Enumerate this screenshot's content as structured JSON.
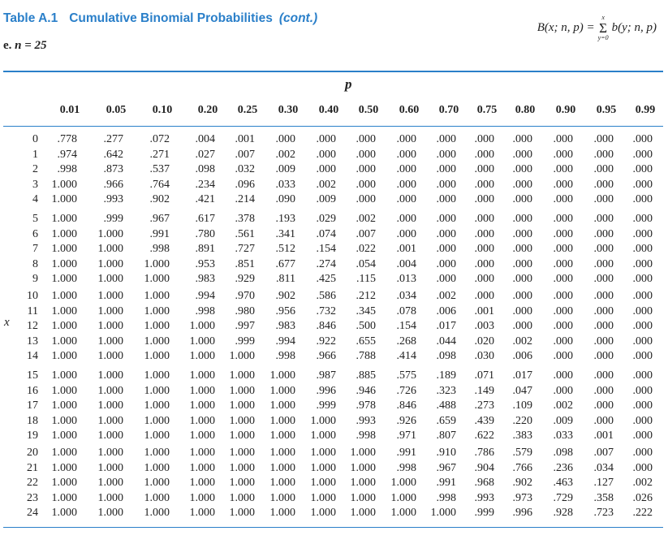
{
  "header": {
    "table_label": "Table A.1",
    "title": "Cumulative Binomial Probabilities",
    "cont": "(cont.)",
    "subtitle_prefix": "e.",
    "subtitle_n": "n = 25",
    "formula_lhs": "B(x; n, p) =",
    "formula_sum_upper": "x",
    "formula_sum_symbol": "Σ",
    "formula_sum_lower": "y=0",
    "formula_rhs": "b(y; n, p)"
  },
  "axis": {
    "p_label": "p",
    "x_label": "x"
  },
  "columns": [
    "0.01",
    "0.05",
    "0.10",
    "0.20",
    "0.25",
    "0.30",
    "0.40",
    "0.50",
    "0.60",
    "0.70",
    "0.75",
    "0.80",
    "0.90",
    "0.95",
    "0.99"
  ],
  "rows": [
    {
      "x": "0",
      "v": [
        ".778",
        ".277",
        ".072",
        ".004",
        ".001",
        ".000",
        ".000",
        ".000",
        ".000",
        ".000",
        ".000",
        ".000",
        ".000",
        ".000",
        ".000"
      ]
    },
    {
      "x": "1",
      "v": [
        ".974",
        ".642",
        ".271",
        ".027",
        ".007",
        ".002",
        ".000",
        ".000",
        ".000",
        ".000",
        ".000",
        ".000",
        ".000",
        ".000",
        ".000"
      ]
    },
    {
      "x": "2",
      "v": [
        ".998",
        ".873",
        ".537",
        ".098",
        ".032",
        ".009",
        ".000",
        ".000",
        ".000",
        ".000",
        ".000",
        ".000",
        ".000",
        ".000",
        ".000"
      ]
    },
    {
      "x": "3",
      "v": [
        "1.000",
        ".966",
        ".764",
        ".234",
        ".096",
        ".033",
        ".002",
        ".000",
        ".000",
        ".000",
        ".000",
        ".000",
        ".000",
        ".000",
        ".000"
      ]
    },
    {
      "x": "4",
      "v": [
        "1.000",
        ".993",
        ".902",
        ".421",
        ".214",
        ".090",
        ".009",
        ".000",
        ".000",
        ".000",
        ".000",
        ".000",
        ".000",
        ".000",
        ".000"
      ]
    },
    {
      "x": "5",
      "v": [
        "1.000",
        ".999",
        ".967",
        ".617",
        ".378",
        ".193",
        ".029",
        ".002",
        ".000",
        ".000",
        ".000",
        ".000",
        ".000",
        ".000",
        ".000"
      ]
    },
    {
      "x": "6",
      "v": [
        "1.000",
        "1.000",
        ".991",
        ".780",
        ".561",
        ".341",
        ".074",
        ".007",
        ".000",
        ".000",
        ".000",
        ".000",
        ".000",
        ".000",
        ".000"
      ]
    },
    {
      "x": "7",
      "v": [
        "1.000",
        "1.000",
        ".998",
        ".891",
        ".727",
        ".512",
        ".154",
        ".022",
        ".001",
        ".000",
        ".000",
        ".000",
        ".000",
        ".000",
        ".000"
      ]
    },
    {
      "x": "8",
      "v": [
        "1.000",
        "1.000",
        "1.000",
        ".953",
        ".851",
        ".677",
        ".274",
        ".054",
        ".004",
        ".000",
        ".000",
        ".000",
        ".000",
        ".000",
        ".000"
      ]
    },
    {
      "x": "9",
      "v": [
        "1.000",
        "1.000",
        "1.000",
        ".983",
        ".929",
        ".811",
        ".425",
        ".115",
        ".013",
        ".000",
        ".000",
        ".000",
        ".000",
        ".000",
        ".000"
      ]
    },
    {
      "x": "10",
      "v": [
        "1.000",
        "1.000",
        "1.000",
        ".994",
        ".970",
        ".902",
        ".586",
        ".212",
        ".034",
        ".002",
        ".000",
        ".000",
        ".000",
        ".000",
        ".000"
      ]
    },
    {
      "x": "11",
      "v": [
        "1.000",
        "1.000",
        "1.000",
        ".998",
        ".980",
        ".956",
        ".732",
        ".345",
        ".078",
        ".006",
        ".001",
        ".000",
        ".000",
        ".000",
        ".000"
      ]
    },
    {
      "x": "12",
      "v": [
        "1.000",
        "1.000",
        "1.000",
        "1.000",
        ".997",
        ".983",
        ".846",
        ".500",
        ".154",
        ".017",
        ".003",
        ".000",
        ".000",
        ".000",
        ".000"
      ]
    },
    {
      "x": "13",
      "v": [
        "1.000",
        "1.000",
        "1.000",
        "1.000",
        ".999",
        ".994",
        ".922",
        ".655",
        ".268",
        ".044",
        ".020",
        ".002",
        ".000",
        ".000",
        ".000"
      ]
    },
    {
      "x": "14",
      "v": [
        "1.000",
        "1.000",
        "1.000",
        "1.000",
        "1.000",
        ".998",
        ".966",
        ".788",
        ".414",
        ".098",
        ".030",
        ".006",
        ".000",
        ".000",
        ".000"
      ]
    },
    {
      "x": "15",
      "v": [
        "1.000",
        "1.000",
        "1.000",
        "1.000",
        "1.000",
        "1.000",
        ".987",
        ".885",
        ".575",
        ".189",
        ".071",
        ".017",
        ".000",
        ".000",
        ".000"
      ]
    },
    {
      "x": "16",
      "v": [
        "1.000",
        "1.000",
        "1.000",
        "1.000",
        "1.000",
        "1.000",
        ".996",
        ".946",
        ".726",
        ".323",
        ".149",
        ".047",
        ".000",
        ".000",
        ".000"
      ]
    },
    {
      "x": "17",
      "v": [
        "1.000",
        "1.000",
        "1.000",
        "1.000",
        "1.000",
        "1.000",
        ".999",
        ".978",
        ".846",
        ".488",
        ".273",
        ".109",
        ".002",
        ".000",
        ".000"
      ]
    },
    {
      "x": "18",
      "v": [
        "1.000",
        "1.000",
        "1.000",
        "1.000",
        "1.000",
        "1.000",
        "1.000",
        ".993",
        ".926",
        ".659",
        ".439",
        ".220",
        ".009",
        ".000",
        ".000"
      ]
    },
    {
      "x": "19",
      "v": [
        "1.000",
        "1.000",
        "1.000",
        "1.000",
        "1.000",
        "1.000",
        "1.000",
        ".998",
        ".971",
        ".807",
        ".622",
        ".383",
        ".033",
        ".001",
        ".000"
      ]
    },
    {
      "x": "20",
      "v": [
        "1.000",
        "1.000",
        "1.000",
        "1.000",
        "1.000",
        "1.000",
        "1.000",
        "1.000",
        ".991",
        ".910",
        ".786",
        ".579",
        ".098",
        ".007",
        ".000"
      ]
    },
    {
      "x": "21",
      "v": [
        "1.000",
        "1.000",
        "1.000",
        "1.000",
        "1.000",
        "1.000",
        "1.000",
        "1.000",
        ".998",
        ".967",
        ".904",
        ".766",
        ".236",
        ".034",
        ".000"
      ]
    },
    {
      "x": "22",
      "v": [
        "1.000",
        "1.000",
        "1.000",
        "1.000",
        "1.000",
        "1.000",
        "1.000",
        "1.000",
        "1.000",
        ".991",
        ".968",
        ".902",
        ".463",
        ".127",
        ".002"
      ]
    },
    {
      "x": "23",
      "v": [
        "1.000",
        "1.000",
        "1.000",
        "1.000",
        "1.000",
        "1.000",
        "1.000",
        "1.000",
        "1.000",
        ".998",
        ".993",
        ".973",
        ".729",
        ".358",
        ".026"
      ]
    },
    {
      "x": "24",
      "v": [
        "1.000",
        "1.000",
        "1.000",
        "1.000",
        "1.000",
        "1.000",
        "1.000",
        "1.000",
        "1.000",
        "1.000",
        ".999",
        ".996",
        ".928",
        ".723",
        ".222"
      ]
    }
  ]
}
